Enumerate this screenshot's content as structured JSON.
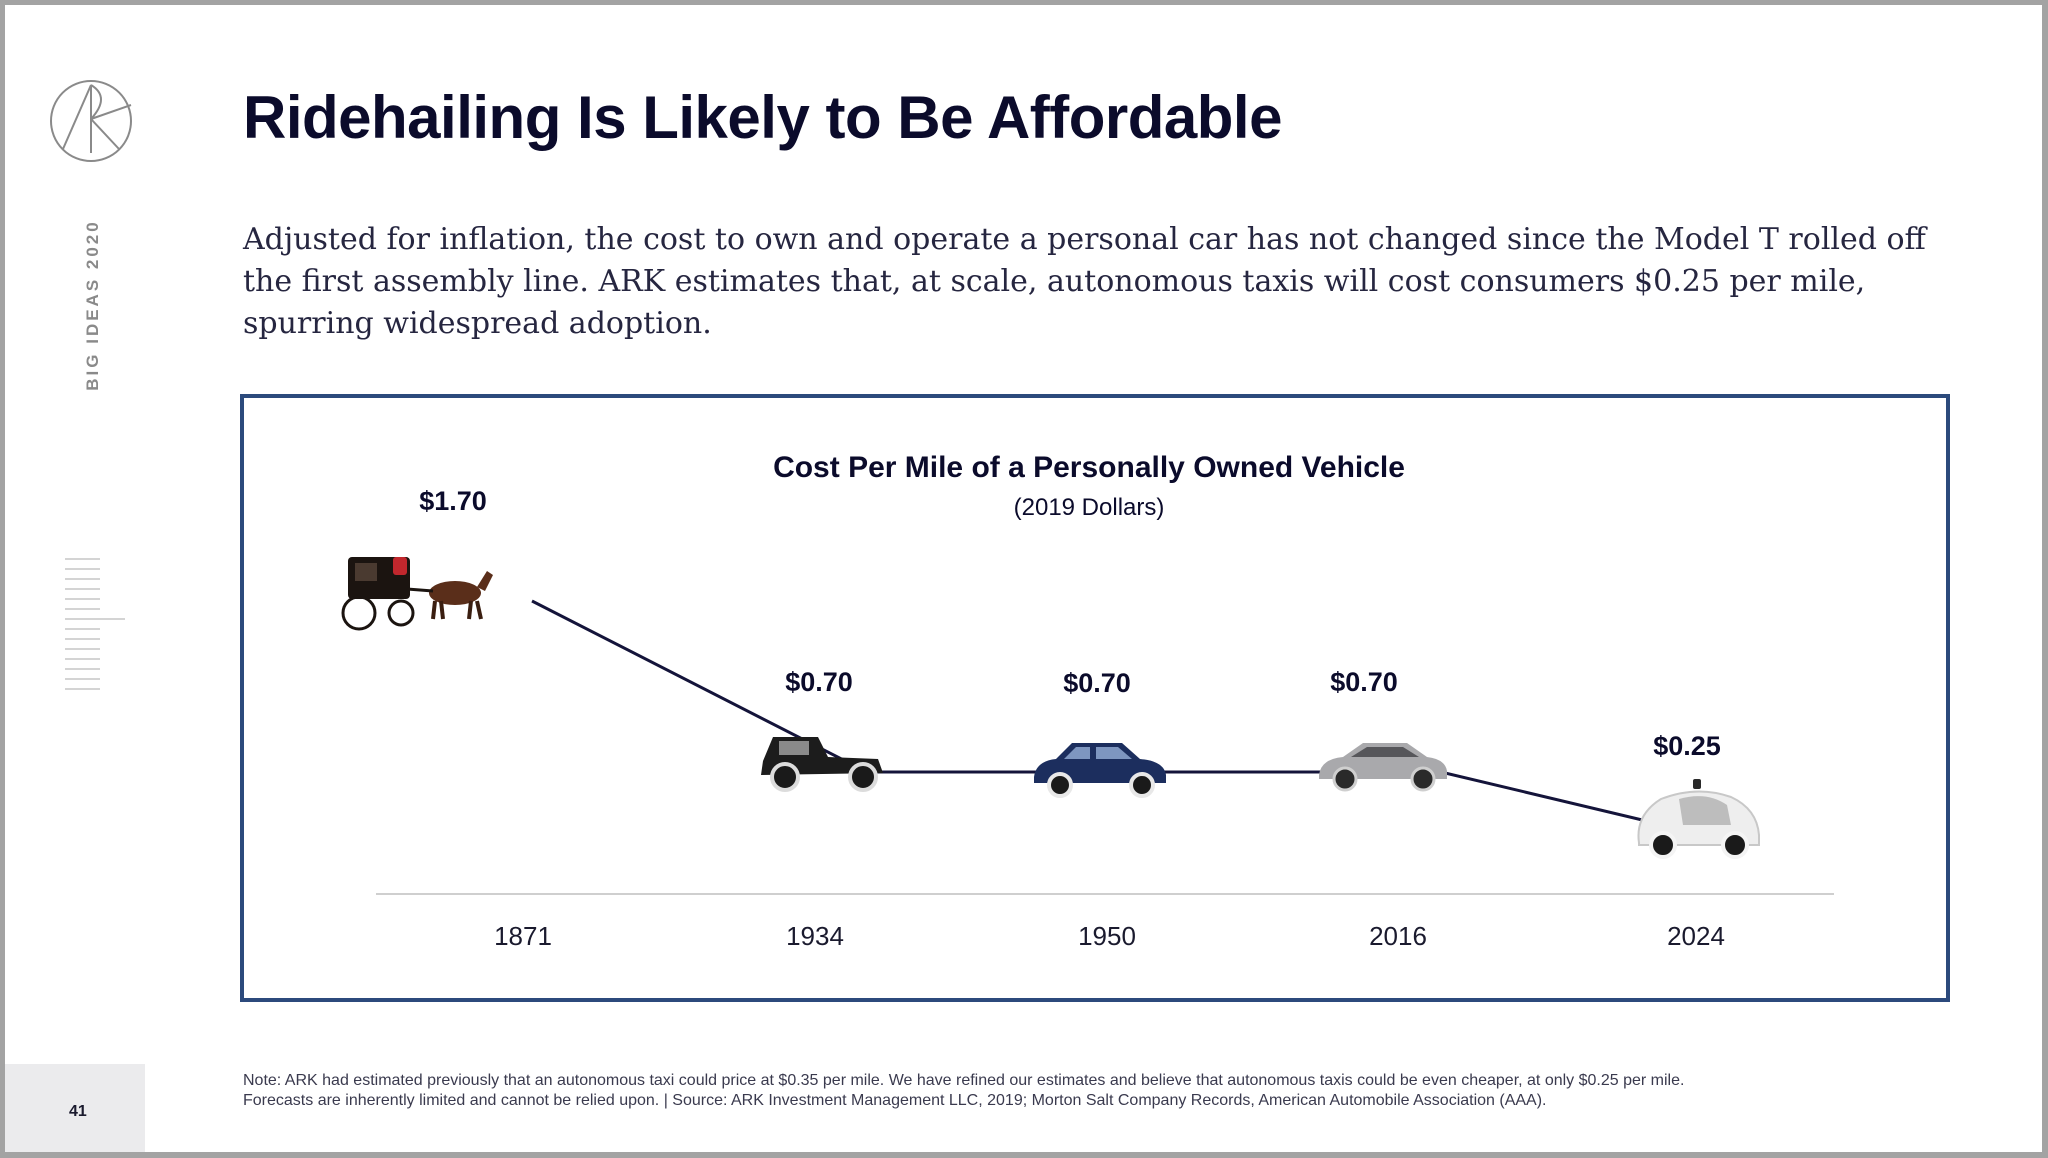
{
  "side_label": "BIG IDEAS 2020",
  "page_number": "41",
  "title": "Ridehailing Is Likely to Be Affordable",
  "intro": "Adjusted for inflation, the cost to own and operate a personal car has not changed since the Model T rolled off the first assembly line. ARK estimates that, at scale, autonomous taxis will cost consumers $0.25 per mile, spurring widespread adoption.",
  "note_line1": "Note: ARK had estimated previously that an autonomous taxi could price at $0.35 per mile. We have refined our estimates and believe that autonomous taxis could be even cheaper, at only $0.25 per mile.",
  "note_line2": "Forecasts are inherently limited and cannot be relied upon.  |  Source: ARK Investment Management LLC, 2019; Morton Salt Company Records, American Automobile Association (AAA).",
  "colors": {
    "frame": "#2c4a7c",
    "line": "#14143a",
    "text": "#0b0b2b",
    "axis": "#cfcfcf"
  },
  "chart_data": {
    "type": "line",
    "title": "Cost Per Mile of a Personally Owned Vehicle",
    "subtitle": "(2019 Dollars)",
    "categories": [
      "1871",
      "1934",
      "1950",
      "2016",
      "2024"
    ],
    "values": [
      1.7,
      0.7,
      0.7,
      0.7,
      0.25
    ],
    "data_labels": [
      "$1.70",
      "$0.70",
      "$0.70",
      "$0.70",
      "$0.25"
    ],
    "icons": [
      "horse-carriage-icon",
      "model-t-car-icon",
      "1950s-sedan-icon",
      "modern-sedan-icon",
      "autonomous-car-icon"
    ],
    "ylim": [
      0,
      2
    ],
    "grid": false,
    "legend": "none"
  }
}
